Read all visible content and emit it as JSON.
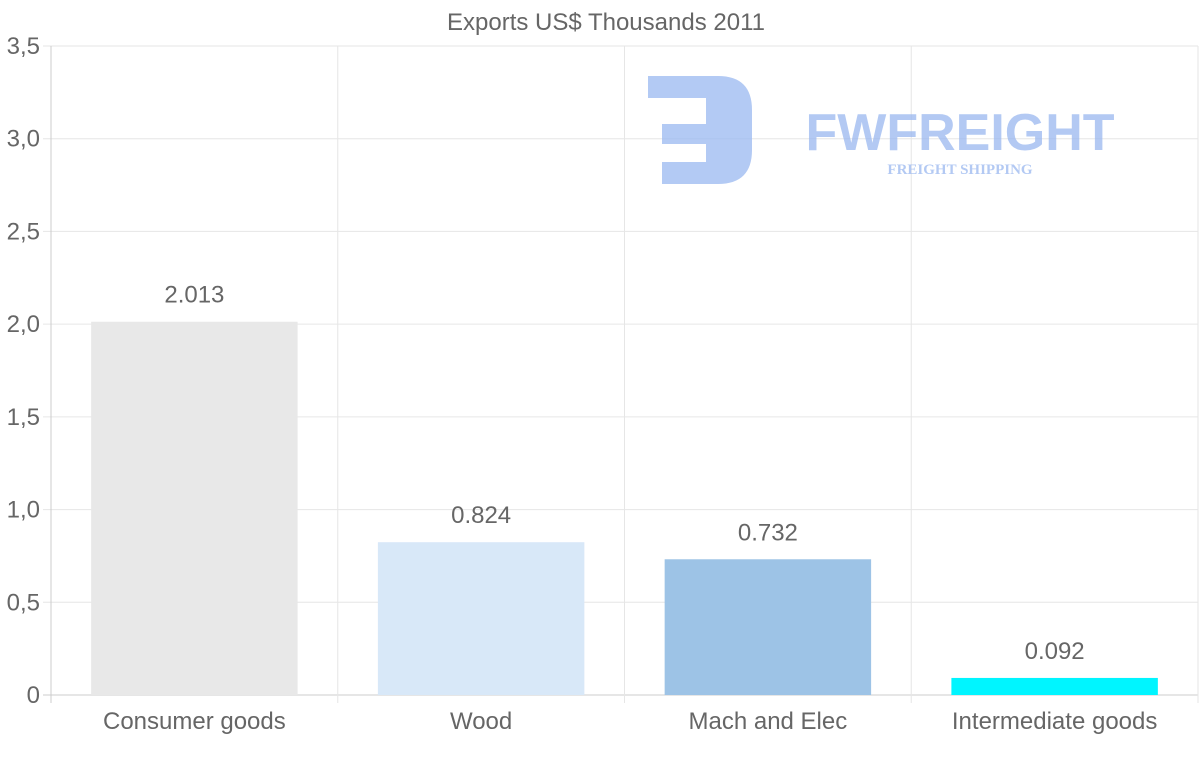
{
  "chart_data": {
    "type": "bar",
    "title": "Exports US$ Thousands 2011",
    "categories": [
      "Consumer goods",
      "Wood",
      "Mach and Elec",
      "Intermediate goods"
    ],
    "values": [
      2.013,
      0.824,
      0.732,
      0.092
    ],
    "value_labels": [
      "2.013",
      "0.824",
      "0.732",
      "0.092"
    ],
    "bar_colors": [
      "#e8e8e8",
      "#d8e8f8",
      "#9dc3e6",
      "#00f5ff"
    ],
    "ylim": [
      0,
      3.5
    ],
    "yticks": [
      0,
      0.5,
      1.0,
      1.5,
      2.0,
      2.5,
      3.0,
      3.5
    ],
    "ytick_labels": [
      "0",
      "0,5",
      "1,0",
      "1,5",
      "2,0",
      "2,5",
      "3,0",
      "3,5"
    ],
    "xlabel": "",
    "ylabel": "",
    "grid": true,
    "legend": false
  },
  "watermark": {
    "brand": "FWFREIGHT",
    "tagline": "FREIGHT SHIPPING",
    "color": "#9ab8f0"
  }
}
